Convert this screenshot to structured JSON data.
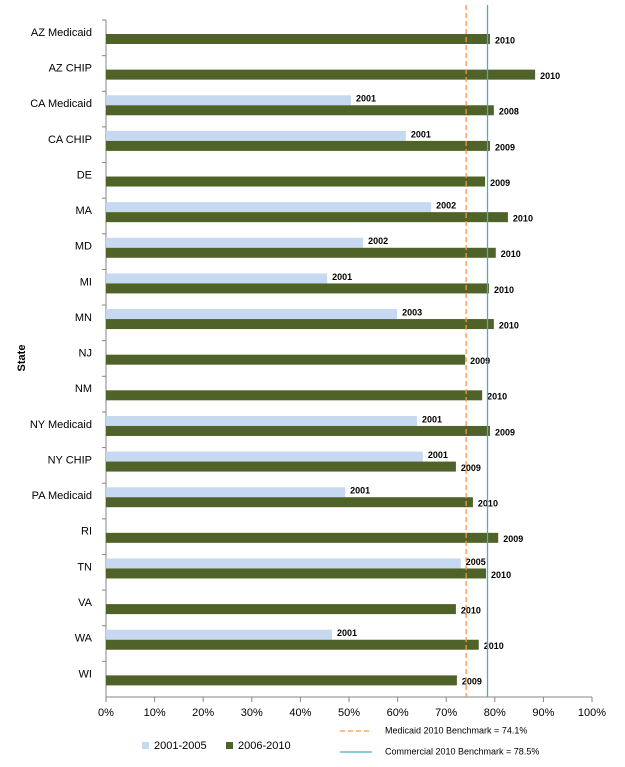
{
  "chart_data": {
    "type": "hbar",
    "y_axis_label": "State",
    "categories": [
      "AZ Medicaid",
      "AZ CHIP",
      "CA Medicaid",
      "CA CHIP",
      "DE",
      "MA",
      "MD",
      "MI",
      "MN",
      "NJ",
      "NM",
      "NY Medicaid",
      "NY CHIP",
      "PA Medicaid",
      "RI",
      "TN",
      "VA",
      "WA",
      "WI"
    ],
    "series": [
      {
        "name": "2001-2005",
        "color": "#c6d9f1",
        "values": [
          null,
          null,
          50.4,
          61.7,
          null,
          66.9,
          52.9,
          45.5,
          59.9,
          null,
          null,
          64.0,
          65.2,
          49.2,
          null,
          73.0,
          null,
          46.5,
          null
        ],
        "year_labels": [
          null,
          null,
          "2001",
          "2001",
          null,
          "2002",
          "2002",
          "2001",
          "2003",
          null,
          null,
          "2001",
          "2001",
          "2001",
          null,
          "2005",
          null,
          "2001",
          null
        ]
      },
      {
        "name": "2006-2010",
        "color": "#4f6228",
        "values": [
          79.0,
          88.3,
          79.8,
          79.0,
          78.0,
          82.7,
          80.2,
          78.8,
          79.8,
          73.9,
          77.4,
          79.0,
          72.0,
          75.5,
          80.7,
          78.2,
          72.0,
          76.7,
          72.2
        ],
        "year_labels": [
          "2010",
          "2010",
          "2008",
          "2009",
          "2009",
          "2010",
          "2010",
          "2010",
          "2010",
          "2009",
          "2010",
          "2009",
          "2009",
          "2010",
          "2009",
          "2010",
          "2010",
          "2010",
          "2009"
        ]
      }
    ],
    "reference_lines": [
      {
        "name": "Medicaid 2010 Benchmark = 74.1%",
        "value": 74.1,
        "color": "#f79646",
        "dashed": true
      },
      {
        "name": "Commercial 2010 Benchmark = 78.5%",
        "value": 78.5,
        "color": "#4bacc6",
        "dashed": false
      }
    ],
    "xlim": [
      0,
      100
    ],
    "xticks": [
      {
        "value": 0,
        "label": "0%"
      },
      {
        "value": 10,
        "label": "10%"
      },
      {
        "value": 20,
        "label": "20%"
      },
      {
        "value": 30,
        "label": "30%"
      },
      {
        "value": 40,
        "label": "40%"
      },
      {
        "value": 50,
        "label": "50%"
      },
      {
        "value": 60,
        "label": "60%"
      },
      {
        "value": 70,
        "label": "70%"
      },
      {
        "value": 80,
        "label": "80%"
      },
      {
        "value": 90,
        "label": "90%"
      },
      {
        "value": 100,
        "label": "100%"
      }
    ]
  }
}
